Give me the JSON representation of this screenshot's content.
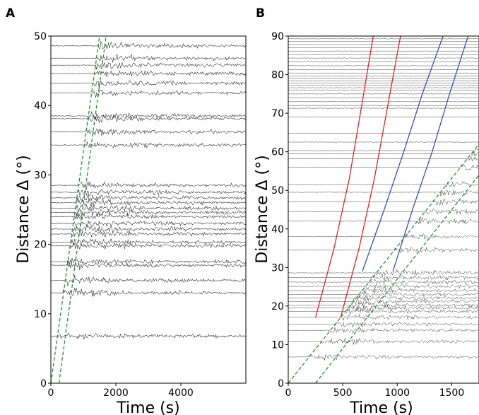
{
  "chart_data": [
    {
      "type": "line",
      "panel": "A",
      "xlabel": "Time (s)",
      "ylabel": "Distance Δ (°)",
      "xlim": [
        0,
        6000
      ],
      "ylim": [
        0,
        50
      ],
      "xticks": [
        0,
        2000,
        4000
      ],
      "yticks": [
        0,
        10,
        20,
        30,
        40,
        50
      ],
      "x_tick_labels": [
        "0",
        "2000",
        "4000"
      ],
      "y_tick_labels": [
        "0",
        "10",
        "20",
        "30",
        "40",
        "50"
      ],
      "trace_distances": [
        6.8,
        13.0,
        14.8,
        17.0,
        17.5,
        19.8,
        20.3,
        21.5,
        22.2,
        23.0,
        24.0,
        24.6,
        25.2,
        26.0,
        26.7,
        27.5,
        28.5,
        34.3,
        36.2,
        38.1,
        38.5,
        41.8,
        43.2,
        44.6,
        45.8,
        46.8,
        48.6
      ],
      "series": [
        {
          "color": "#2e8b3a",
          "style": "dashed",
          "x": [
            0,
            1500
          ],
          "y": [
            0,
            50
          ]
        },
        {
          "color": "#2e8b3a",
          "style": "dashed",
          "x": [
            250,
            1700
          ],
          "y": [
            0,
            50
          ]
        }
      ],
      "grid": false
    },
    {
      "type": "line",
      "panel": "B",
      "xlabel": "Time (s)",
      "ylabel": "Distance Δ (°)",
      "xlim": [
        0,
        1750
      ],
      "ylim": [
        0,
        90
      ],
      "xticks": [
        0,
        500,
        1000,
        1500
      ],
      "yticks": [
        0,
        10,
        20,
        30,
        40,
        50,
        60,
        70,
        80,
        90
      ],
      "x_tick_labels": [
        "0",
        "500",
        "1000",
        "1500"
      ],
      "y_tick_labels": [
        "0",
        "10",
        "20",
        "30",
        "40",
        "50",
        "60",
        "70",
        "80",
        "90"
      ],
      "trace_distances": [
        6.8,
        10.8,
        13.7,
        15.3,
        17.1,
        18.6,
        19.5,
        20.2,
        21.2,
        22.1,
        23.0,
        24.0,
        25.1,
        26.2,
        27.4,
        28.6,
        34.5,
        38.0,
        42.0,
        44.5,
        47.0,
        49.5,
        51.5,
        56.0,
        58.2,
        59.5,
        60.3,
        62.5,
        64.8,
        69.0,
        71.3,
        72.0,
        73.0,
        74.0,
        75.0,
        76.0,
        76.6,
        77.2,
        77.8,
        78.4,
        79.0,
        79.6,
        80.4,
        81.3,
        82.3,
        83.3,
        84.3,
        85.2,
        86.1,
        87.0,
        87.8,
        88.6,
        89.3
      ],
      "series": [
        {
          "color": "#d62728",
          "style": "solid",
          "x": [
            250,
            420,
            560,
            680,
            780
          ],
          "y": [
            17,
            35,
            53,
            73,
            90
          ]
        },
        {
          "color": "#d62728",
          "style": "solid",
          "x": [
            480,
            650,
            790,
            920,
            1030
          ],
          "y": [
            17,
            35,
            53,
            73,
            90
          ]
        },
        {
          "color": "#3a4fb0",
          "style": "solid",
          "x": [
            680,
            880,
            1060,
            1230,
            1420
          ],
          "y": [
            29,
            45,
            60,
            75,
            90
          ]
        },
        {
          "color": "#3a4fb0",
          "style": "solid",
          "x": [
            960,
            1140,
            1320,
            1480,
            1650
          ],
          "y": [
            29,
            45,
            60,
            75,
            90
          ]
        },
        {
          "color": "#2e8b3a",
          "style": "dashed",
          "x": [
            0,
            1750
          ],
          "y": [
            0,
            62
          ]
        },
        {
          "color": "#2e8b3a",
          "style": "dashed",
          "x": [
            250,
            1750
          ],
          "y": [
            0,
            54
          ]
        }
      ],
      "grid": false
    }
  ],
  "panels": {
    "a_label": "A",
    "b_label": "B"
  }
}
